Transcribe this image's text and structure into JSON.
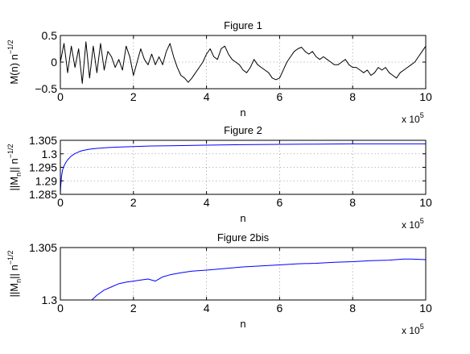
{
  "chart_data": [
    {
      "type": "line",
      "title": "Figure 1",
      "xlabel": "n",
      "ylabel_main": "M(n) n",
      "ylabel_exp": "−1/2",
      "x_multiplier_base": "x 10",
      "x_multiplier_exp": "5",
      "xlim": [
        0,
        1000000
      ],
      "ylim": [
        -0.5,
        0.5
      ],
      "xtick_values": [
        0,
        200000,
        400000,
        600000,
        800000,
        1000000
      ],
      "xtick_labels": [
        "0",
        "2",
        "4",
        "6",
        "8",
        "10"
      ],
      "ytick_values": [
        -0.5,
        0,
        0.5
      ],
      "ytick_labels": [
        "−0.5",
        "0",
        "0.5"
      ],
      "grid": true,
      "series": [
        {
          "color": "#000000",
          "x": [
            0,
            10000,
            20000,
            30000,
            40000,
            50000,
            60000,
            70000,
            80000,
            90000,
            100000,
            110000,
            120000,
            130000,
            140000,
            150000,
            160000,
            170000,
            180000,
            190000,
            200000,
            210000,
            220000,
            230000,
            240000,
            250000,
            260000,
            270000,
            280000,
            290000,
            300000,
            310000,
            320000,
            330000,
            340000,
            350000,
            360000,
            370000,
            380000,
            390000,
            400000,
            410000,
            420000,
            430000,
            440000,
            450000,
            460000,
            470000,
            480000,
            490000,
            500000,
            510000,
            520000,
            530000,
            540000,
            550000,
            560000,
            570000,
            580000,
            590000,
            600000,
            610000,
            620000,
            630000,
            640000,
            650000,
            660000,
            670000,
            680000,
            690000,
            700000,
            710000,
            720000,
            730000,
            740000,
            750000,
            760000,
            770000,
            780000,
            790000,
            800000,
            810000,
            820000,
            830000,
            840000,
            850000,
            860000,
            870000,
            880000,
            890000,
            900000,
            910000,
            920000,
            930000,
            940000,
            950000,
            960000,
            970000,
            980000,
            990000,
            1000000
          ],
          "y": [
            0.0,
            0.35,
            -0.2,
            0.3,
            -0.1,
            0.25,
            -0.4,
            0.38,
            -0.3,
            0.3,
            -0.2,
            0.35,
            -0.15,
            0.2,
            0.1,
            -0.1,
            0.05,
            -0.15,
            0.3,
            0.1,
            -0.25,
            0.0,
            0.25,
            0.05,
            -0.05,
            0.15,
            -0.05,
            0.1,
            -0.05,
            0.2,
            0.35,
            0.1,
            -0.1,
            -0.25,
            -0.3,
            -0.38,
            -0.3,
            -0.2,
            -0.1,
            0.0,
            0.15,
            0.25,
            0.1,
            0.05,
            0.25,
            0.3,
            0.15,
            0.05,
            0.0,
            -0.05,
            -0.15,
            -0.2,
            -0.1,
            0.05,
            -0.05,
            -0.1,
            -0.15,
            -0.2,
            -0.3,
            -0.33,
            -0.3,
            -0.15,
            0.0,
            0.1,
            0.2,
            0.25,
            0.28,
            0.2,
            0.15,
            0.2,
            0.1,
            0.05,
            0.1,
            0.05,
            0.0,
            -0.05,
            -0.05,
            0.0,
            0.05,
            -0.05,
            -0.1,
            -0.1,
            -0.15,
            -0.2,
            -0.15,
            -0.25,
            -0.2,
            -0.1,
            -0.15,
            -0.1,
            -0.2,
            -0.25,
            -0.3,
            -0.2,
            -0.15,
            -0.1,
            -0.05,
            0.0,
            0.1,
            0.2,
            0.3
          ]
        }
      ]
    },
    {
      "type": "line",
      "title": "Figure 2",
      "xlabel": "n",
      "ylabel_main": "||M",
      "ylabel_sub": "n",
      "ylabel_tail": "|| n",
      "ylabel_exp": "−1/2",
      "x_multiplier_base": "x 10",
      "x_multiplier_exp": "5",
      "xlim": [
        0,
        1000000
      ],
      "ylim": [
        1.285,
        1.305
      ],
      "xtick_values": [
        0,
        200000,
        400000,
        600000,
        800000,
        1000000
      ],
      "xtick_labels": [
        "0",
        "2",
        "4",
        "6",
        "8",
        "10"
      ],
      "ytick_values": [
        1.285,
        1.29,
        1.295,
        1.3,
        1.305
      ],
      "ytick_labels": [
        "1.285",
        "1.29",
        "1.295",
        "1.3",
        "1.305"
      ],
      "grid": true,
      "series": [
        {
          "color": "#0000ff",
          "x": [
            0,
            1000,
            3000,
            6000,
            10000,
            15000,
            20000,
            30000,
            40000,
            50000,
            60000,
            80000,
            100000,
            130000,
            160000,
            200000,
            250000,
            300000,
            350000,
            400000,
            500000,
            600000,
            700000,
            800000,
            900000,
            1000000
          ],
          "y": [
            1.285,
            1.288,
            1.2915,
            1.294,
            1.2955,
            1.2968,
            1.2978,
            1.2992,
            1.3001,
            1.3007,
            1.3012,
            1.3017,
            1.302,
            1.3023,
            1.3025,
            1.3027,
            1.3029,
            1.303,
            1.3031,
            1.3032,
            1.3034,
            1.3035,
            1.3036,
            1.3037,
            1.3037,
            1.3037
          ]
        }
      ]
    },
    {
      "type": "line",
      "title": "Figure 2bis",
      "xlabel": "n",
      "ylabel_main": "||M",
      "ylabel_sub": "n",
      "ylabel_tail": "|| n",
      "ylabel_exp": "−1/2",
      "x_multiplier_base": "x 10",
      "x_multiplier_exp": "5",
      "xlim": [
        0,
        1000000
      ],
      "ylim": [
        1.3,
        1.305
      ],
      "xtick_values": [
        0,
        200000,
        400000,
        600000,
        800000,
        1000000
      ],
      "xtick_labels": [
        "0",
        "2",
        "4",
        "6",
        "8",
        "10"
      ],
      "ytick_values": [
        1.3,
        1.305
      ],
      "ytick_labels": [
        "1.3",
        "1.305"
      ],
      "grid": true,
      "series": [
        {
          "color": "#0000ff",
          "x": [
            86000,
            100000,
            120000,
            140000,
            160000,
            180000,
            200000,
            220000,
            240000,
            260000,
            280000,
            300000,
            330000,
            360000,
            400000,
            450000,
            500000,
            550000,
            600000,
            650000,
            700000,
            750000,
            800000,
            850000,
            900000,
            940000,
            960000,
            1000000
          ],
          "y": [
            1.3,
            1.30045,
            1.30095,
            1.30125,
            1.30155,
            1.3017,
            1.3018,
            1.3019,
            1.302,
            1.3018,
            1.3022,
            1.3024,
            1.3026,
            1.30275,
            1.30285,
            1.303,
            1.30315,
            1.30325,
            1.30335,
            1.30345,
            1.3035,
            1.3036,
            1.30365,
            1.30375,
            1.3038,
            1.3039,
            1.3039,
            1.30385
          ]
        }
      ]
    }
  ]
}
